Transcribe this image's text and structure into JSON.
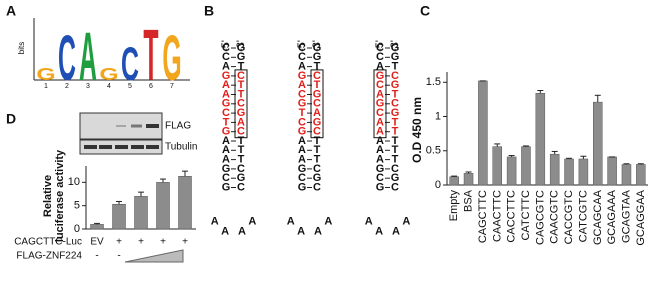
{
  "panels": {
    "a": "A",
    "b": "B",
    "c": "C",
    "d": "D"
  },
  "logo": {
    "ylabel": "bits",
    "ylim": [
      0,
      2
    ],
    "positions": [
      "1",
      "2",
      "3",
      "4",
      "5",
      "6",
      "7"
    ],
    "letters": [
      "G",
      "C",
      "A",
      "G",
      "C",
      "T",
      "G"
    ],
    "heights": [
      0.4,
      1.5,
      1.6,
      0.4,
      1.1,
      1.7,
      1.5
    ],
    "colors": {
      "A": "#1e9e3f",
      "C": "#1f4fb5",
      "G": "#f2a61d",
      "T": "#d62728"
    }
  },
  "hairpins": {
    "highlight_color": "#e0201b",
    "highlight_rows": [
      3,
      9
    ],
    "items": [
      {
        "top": [
          "-5'",
          "-3'"
        ],
        "box_side": "right",
        "left": [
          "C",
          "C",
          "A",
          "G",
          "A",
          "A",
          "G",
          "C",
          "T",
          "G",
          "A",
          "A",
          "A",
          "G",
          "C",
          "G"
        ],
        "right": [
          "G",
          "G",
          "T",
          "C",
          "T",
          "T",
          "C",
          "G",
          "A",
          "C",
          "T",
          "T",
          "T",
          "C",
          "G",
          "C"
        ],
        "loop": [
          "A",
          "A",
          "A",
          "A"
        ]
      },
      {
        "top": [
          "-5'",
          "-3'"
        ],
        "box_side": "right",
        "left": [
          "C",
          "C",
          "A",
          "G",
          "A",
          "C",
          "G",
          "T",
          "C",
          "G",
          "A",
          "A",
          "A",
          "G",
          "C",
          "G"
        ],
        "right": [
          "G",
          "G",
          "T",
          "C",
          "T",
          "G",
          "C",
          "A",
          "G",
          "C",
          "T",
          "T",
          "T",
          "C",
          "G",
          "C"
        ],
        "loop": [
          "A",
          "A",
          "A",
          "A"
        ]
      },
      {
        "top": [
          "-5'",
          "-3'"
        ],
        "box_side": "left",
        "left": [
          "C",
          "C",
          "A",
          "G",
          "C",
          "A",
          "G",
          "C",
          "A",
          "A",
          "A",
          "A",
          "A",
          "G",
          "C",
          "G"
        ],
        "right": [
          "G",
          "G",
          "T",
          "C",
          "G",
          "T",
          "C",
          "G",
          "T",
          "T",
          "T",
          "T",
          "T",
          "C",
          "G",
          "C"
        ],
        "loop": [
          "A",
          "A",
          "A",
          "A"
        ]
      }
    ]
  },
  "blot": {
    "labels": [
      "FLAG",
      "Tubulin"
    ]
  },
  "chart_data": [
    {
      "type": "bar",
      "ylabel": "O.D 450 nm",
      "color": "#8c8c8c",
      "categories": [
        "Empty",
        "BSA",
        "CAGCTTC",
        "CAACTTC",
        "CACCTTC",
        "CATCTTC",
        "CAGCGTC",
        "CAACGTC",
        "CACCGTC",
        "CATCGTC",
        "GCAGCAA",
        "GCAGAAA",
        "GCAGTAA",
        "GCAGGAA"
      ],
      "values": [
        0.12,
        0.17,
        1.52,
        0.56,
        0.41,
        0.56,
        1.34,
        0.45,
        0.38,
        0.38,
        1.21,
        0.41,
        0.3,
        0.3
      ],
      "errors": [
        0.01,
        0.02,
        0.0,
        0.04,
        0.02,
        0.01,
        0.04,
        0.04,
        0.01,
        0.04,
        0.1,
        0.0,
        0.01,
        0.01
      ],
      "ylim": [
        0,
        1.65
      ],
      "yticks": [
        0,
        0.5,
        1,
        1.5
      ]
    },
    {
      "type": "bar",
      "ylabel": [
        "Relative",
        "luciferase activity"
      ],
      "color": "#8c8c8c",
      "values": [
        1,
        5.3,
        7,
        10,
        11.3
      ],
      "errors": [
        0.2,
        0.6,
        0.9,
        0.7,
        1.1
      ],
      "ylim": [
        0,
        13.5
      ],
      "yticks": [
        0,
        5,
        10
      ],
      "rows": [
        {
          "label": "CAGCTTC-Luc",
          "cells": [
            "EV",
            "+",
            "+",
            "+",
            "+"
          ]
        },
        {
          "label": "FLAG-ZNF224",
          "cells": [
            "-",
            "-"
          ]
        }
      ]
    }
  ]
}
